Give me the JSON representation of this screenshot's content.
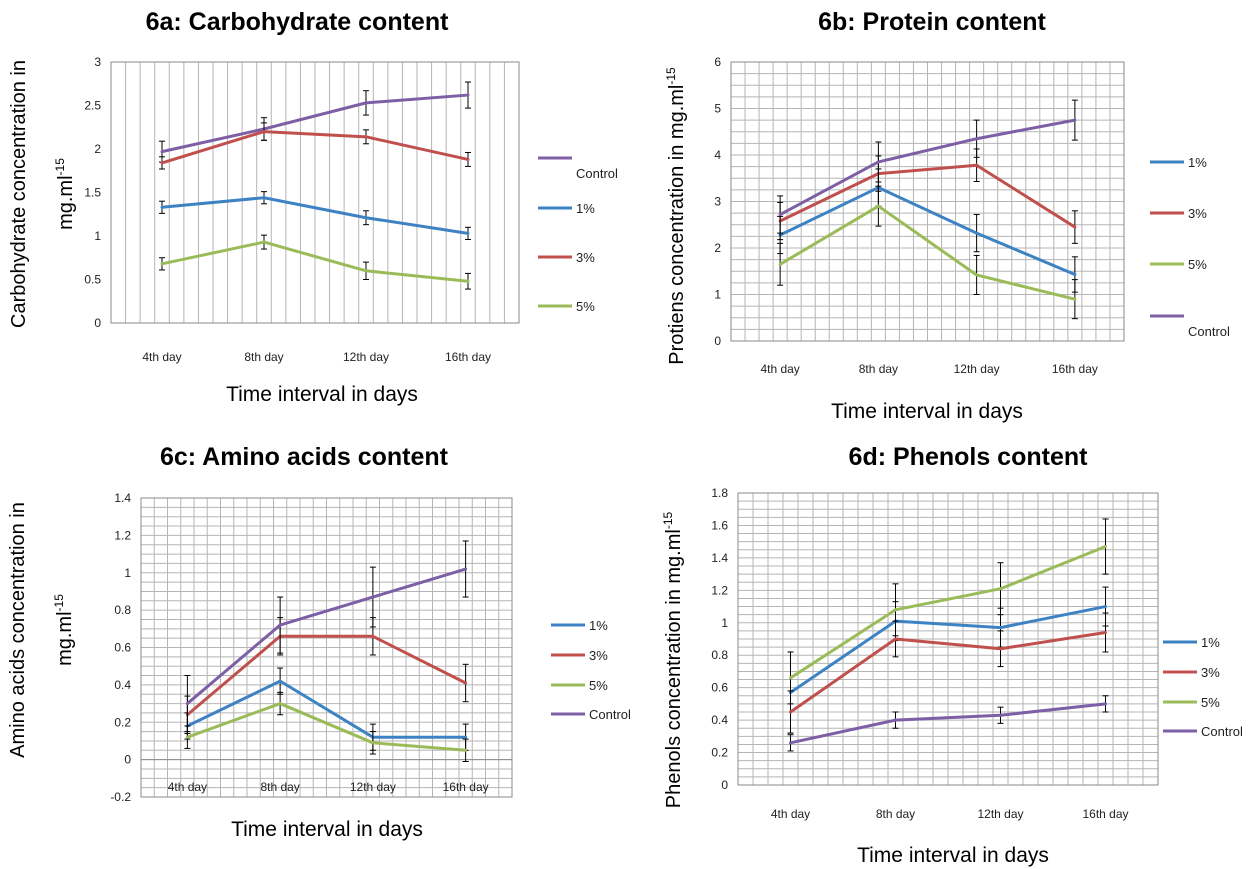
{
  "chart_data": [
    {
      "type": "line",
      "title": "6a: Carbohydrate  content",
      "xlabel": "Time interval in days",
      "ylabel": "Carbohydrate concentration in",
      "ylabel2_base": "mg.ml",
      "ylabel2_sup": "-15",
      "categories": [
        "4th day",
        "8th day",
        "12th day",
        "16th day"
      ],
      "ylim": [
        0,
        3
      ],
      "ytick_step": 0.5,
      "yticks": [
        "0",
        "0.5",
        "1",
        "1.5",
        "2",
        "2.5",
        "3"
      ],
      "grid": "vertical",
      "legend_position": "right",
      "legend_items": [
        {
          "label": "Control",
          "series": "Control"
        },
        {
          "label": "1%",
          "series": "1%"
        },
        {
          "label": "3%",
          "series": "3%"
        },
        {
          "label": "5%",
          "series": "5%"
        }
      ],
      "series": [
        {
          "name": "Control",
          "color": "#7d5fa6",
          "values": [
            1.97,
            2.23,
            2.53,
            2.62
          ],
          "errors": [
            0.12,
            0.13,
            0.14,
            0.15
          ]
        },
        {
          "name": "1%",
          "color": "#3d83c4",
          "values": [
            1.33,
            1.44,
            1.21,
            1.03
          ],
          "errors": [
            0.07,
            0.07,
            0.08,
            0.07
          ]
        },
        {
          "name": "3%",
          "color": "#c0504d",
          "values": [
            1.84,
            2.2,
            2.14,
            1.88
          ],
          "errors": [
            0.07,
            0.1,
            0.08,
            0.08
          ]
        },
        {
          "name": "5%",
          "color": "#9bbb59",
          "values": [
            0.68,
            0.93,
            0.6,
            0.48
          ],
          "errors": [
            0.07,
            0.08,
            0.1,
            0.09
          ]
        }
      ]
    },
    {
      "type": "line",
      "title": "6b: Protein content",
      "xlabel": "Time interval in days",
      "ylabel": "Protiens concentration in mg.ml",
      "ylabel_sup": "-15",
      "categories": [
        "4th day",
        "8th day",
        "12th day",
        "16th day"
      ],
      "ylim": [
        0,
        6
      ],
      "ytick_step": 1,
      "yticks": [
        "0",
        "1",
        "2",
        "3",
        "4",
        "5",
        "6"
      ],
      "grid": "both",
      "legend_position": "right",
      "legend_items": [
        {
          "label": "1%",
          "series": "1%"
        },
        {
          "label": "3%",
          "series": "3%"
        },
        {
          "label": "5%",
          "series": "5%"
        },
        {
          "label": "Control",
          "series": "Control"
        }
      ],
      "series": [
        {
          "name": "1%",
          "color": "#3d83c4",
          "values": [
            2.28,
            3.3,
            2.32,
            1.43
          ],
          "errors": [
            0.4,
            0.4,
            0.4,
            0.38
          ]
        },
        {
          "name": "3%",
          "color": "#c0504d",
          "values": [
            2.58,
            3.6,
            3.78,
            2.45
          ],
          "errors": [
            0.4,
            0.38,
            0.35,
            0.35
          ]
        },
        {
          "name": "5%",
          "color": "#9bbb59",
          "values": [
            1.65,
            2.9,
            1.42,
            0.9
          ],
          "errors": [
            0.45,
            0.43,
            0.42,
            0.42
          ]
        },
        {
          "name": "Control",
          "color": "#7d5fa6",
          "values": [
            2.72,
            3.85,
            4.35,
            4.75
          ],
          "errors": [
            0.4,
            0.43,
            0.4,
            0.43
          ]
        }
      ]
    },
    {
      "type": "line",
      "title": "6c: Amino acids content",
      "xlabel": "Time interval in days",
      "ylabel": "Amino acids concentration in",
      "ylabel2_base": "mg.ml",
      "ylabel2_sup": "-15",
      "categories": [
        "4th day",
        "8th day",
        "12th day",
        "16th day"
      ],
      "ylim": [
        -0.2,
        1.4
      ],
      "ytick_step": 0.2,
      "yticks": [
        "-0.2",
        "0",
        "0.2",
        "0.4",
        "0.6",
        "0.8",
        "1",
        "1.2",
        "1.4"
      ],
      "grid": "both",
      "legend_position": "right",
      "legend_items": [
        {
          "label": "1%",
          "series": "1%"
        },
        {
          "label": "3%",
          "series": "3%"
        },
        {
          "label": "5%",
          "series": "5%"
        },
        {
          "label": "Control",
          "series": "Control"
        }
      ],
      "series": [
        {
          "name": "1%",
          "color": "#3d83c4",
          "values": [
            0.18,
            0.42,
            0.12,
            0.12
          ],
          "errors": [
            0.07,
            0.07,
            0.07,
            0.07
          ]
        },
        {
          "name": "3%",
          "color": "#c0504d",
          "values": [
            0.24,
            0.66,
            0.66,
            0.41
          ],
          "errors": [
            0.1,
            0.1,
            0.1,
            0.1
          ]
        },
        {
          "name": "5%",
          "color": "#9bbb59",
          "values": [
            0.12,
            0.3,
            0.09,
            0.05
          ],
          "errors": [
            0.06,
            0.06,
            0.06,
            0.06
          ]
        },
        {
          "name": "Control",
          "color": "#7d5fa6",
          "values": [
            0.3,
            0.72,
            0.87,
            1.02
          ],
          "errors": [
            0.15,
            0.15,
            0.16,
            0.15
          ]
        }
      ]
    },
    {
      "type": "line",
      "title": "6d: Phenols content",
      "xlabel": "Time interval in days",
      "ylabel": "Phenols concentration in mg.ml",
      "ylabel_sup": "-15",
      "categories": [
        "4th day",
        "8th day",
        "12th day",
        "16th day"
      ],
      "ylim": [
        0,
        1.8
      ],
      "ytick_step": 0.2,
      "yticks": [
        "0",
        "0.2",
        "0.4",
        "0.6",
        "0.8",
        "1",
        "1.2",
        "1.4",
        "1.6",
        "1.8"
      ],
      "grid": "both",
      "legend_position": "right",
      "legend_items": [
        {
          "label": "1%",
          "series": "1%"
        },
        {
          "label": "3%",
          "series": "3%"
        },
        {
          "label": "5%",
          "series": "5%"
        },
        {
          "label": "Control",
          "series": "Control"
        }
      ],
      "series": [
        {
          "name": "1%",
          "color": "#3d83c4",
          "values": [
            0.57,
            1.01,
            0.97,
            1.1
          ],
          "errors": [
            0.25,
            0.12,
            0.12,
            0.12
          ]
        },
        {
          "name": "3%",
          "color": "#c0504d",
          "values": [
            0.45,
            0.9,
            0.84,
            0.94
          ],
          "errors": [
            0.13,
            0.11,
            0.11,
            0.12
          ]
        },
        {
          "name": "5%",
          "color": "#9bbb59",
          "values": [
            0.66,
            1.08,
            1.21,
            1.47
          ],
          "errors": [
            0.16,
            0.16,
            0.16,
            0.17
          ]
        },
        {
          "name": "Control",
          "color": "#7d5fa6",
          "values": [
            0.26,
            0.4,
            0.43,
            0.5
          ],
          "errors": [
            0.05,
            0.05,
            0.05,
            0.05
          ]
        }
      ]
    }
  ]
}
